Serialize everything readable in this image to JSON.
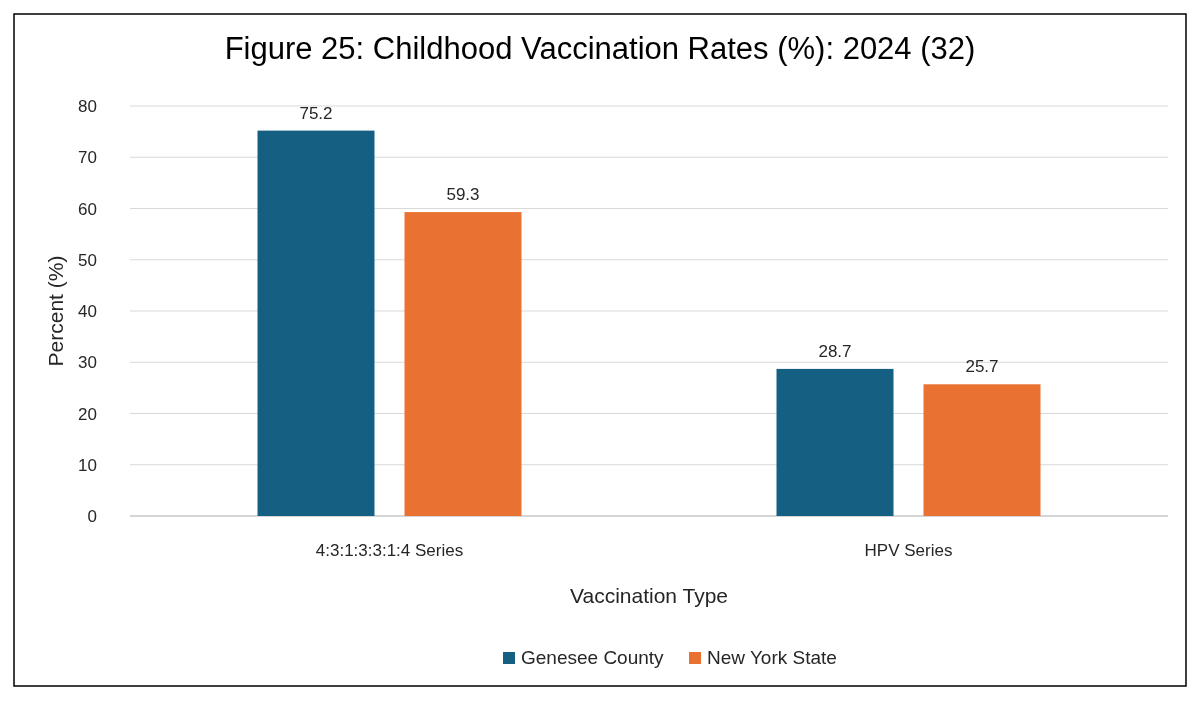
{
  "chart_data": {
    "type": "bar",
    "title": "Figure 25: Childhood Vaccination Rates (%): 2024 (32)",
    "xlabel": "Vaccination Type",
    "ylabel": "Percent (%)",
    "categories": [
      "4:3:1:3:3:1:4 Series",
      "HPV Series"
    ],
    "series": [
      {
        "name": "Genesee County",
        "color": "#156082",
        "values": [
          75.2,
          28.7
        ]
      },
      {
        "name": "New York State",
        "color": "#e97132",
        "values": [
          59.3,
          25.7
        ]
      }
    ],
    "ylim": [
      0,
      80
    ],
    "yticks": [
      0,
      10,
      20,
      30,
      40,
      50,
      60,
      70,
      80
    ],
    "grid": "y",
    "legend": "bottom",
    "data_labels": true
  }
}
